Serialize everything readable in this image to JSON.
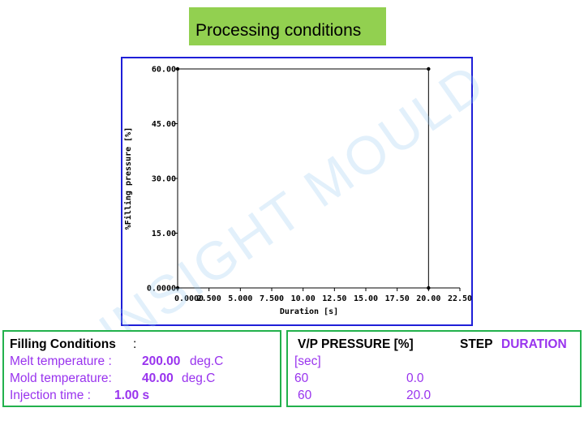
{
  "page_title": "Processing conditions",
  "watermark": "INSIGHT MOULD",
  "colors": {
    "title_bg": "#92d050",
    "chart_border": "#1f1fd8",
    "panel_border": "#22b14c",
    "accent_purple": "#9933ee"
  },
  "chart_data": {
    "type": "line",
    "xlabel": "Duration [s]",
    "ylabel": "%Filling pressure [%]",
    "xlim": [
      0,
      22.5
    ],
    "ylim": [
      0,
      60
    ],
    "x_ticks": [
      "0.0000",
      "2.500",
      "5.000",
      "7.500",
      "10.00",
      "12.50",
      "15.00",
      "17.50",
      "20.00",
      "22.50"
    ],
    "y_ticks": [
      "0.0000",
      "15.00",
      "30.00",
      "45.00",
      "60.00"
    ],
    "series": [
      {
        "x": [
          0,
          0,
          20,
          20
        ],
        "y": [
          0,
          60,
          60,
          0
        ]
      }
    ],
    "grid": false
  },
  "filling_conditions": {
    "heading": "Filling Conditions",
    "colon": ":",
    "rows": [
      {
        "label": "Melt temperature :",
        "value": "200.00",
        "unit": "deg.C"
      },
      {
        "label": "Mold temperature:",
        "value": "40.00",
        "unit": "deg.C"
      },
      {
        "label": "Injection time :",
        "value": "1.00 s"
      }
    ]
  },
  "vp_table": {
    "col1_header": "V/P PRESSURE [%]",
    "col2_header_prefix": "STEP",
    "col2_header_suffix": "DURATION",
    "unit_label": "[sec]",
    "rows": [
      {
        "pressure": "60",
        "duration": "0.0"
      },
      {
        "pressure": "60",
        "duration": "20.0"
      }
    ]
  }
}
